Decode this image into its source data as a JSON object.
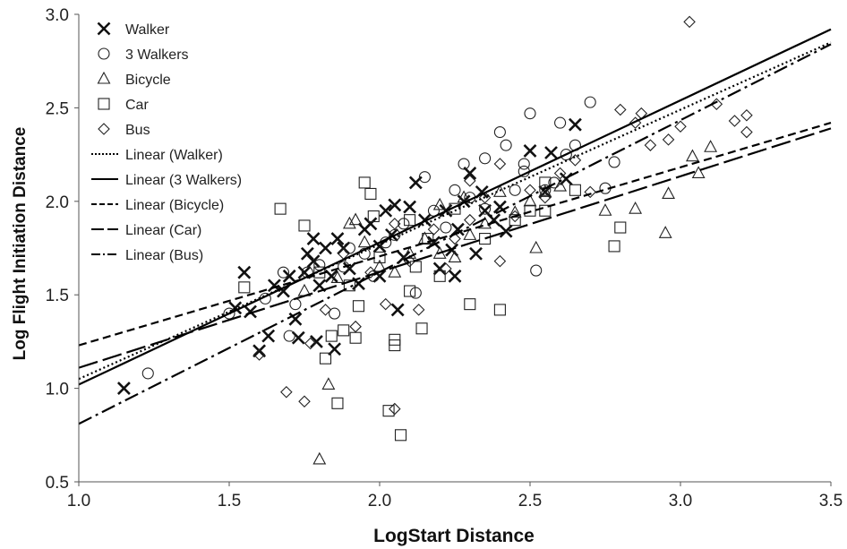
{
  "chart_data": {
    "type": "scatter",
    "xlabel": "LogStart Distance",
    "ylabel": "Log Flight Initiation Distance",
    "xlim": [
      1.0,
      3.5
    ],
    "ylim": [
      0.5,
      3.0
    ],
    "xticks": [
      "1.0",
      "1.5",
      "2.0",
      "2.5",
      "3.0",
      "3.5"
    ],
    "yticks": [
      "0.5",
      "1.0",
      "1.5",
      "2.0",
      "2.5",
      "3.0"
    ],
    "grid": false,
    "legend_position": "top-left",
    "series": [
      {
        "name": "Walker",
        "marker": "x",
        "points": [
          [
            1.15,
            1.0
          ],
          [
            1.52,
            1.43
          ],
          [
            1.55,
            1.62
          ],
          [
            1.57,
            1.41
          ],
          [
            1.6,
            1.2
          ],
          [
            1.63,
            1.28
          ],
          [
            1.65,
            1.55
          ],
          [
            1.68,
            1.52
          ],
          [
            1.7,
            1.6
          ],
          [
            1.72,
            1.37
          ],
          [
            1.73,
            1.27
          ],
          [
            1.75,
            1.62
          ],
          [
            1.76,
            1.72
          ],
          [
            1.78,
            1.68
          ],
          [
            1.79,
            1.25
          ],
          [
            1.8,
            1.55
          ],
          [
            1.82,
            1.75
          ],
          [
            1.84,
            1.6
          ],
          [
            1.85,
            1.21
          ],
          [
            1.86,
            1.8
          ],
          [
            1.88,
            1.75
          ],
          [
            1.9,
            1.64
          ],
          [
            1.93,
            1.56
          ],
          [
            1.95,
            1.85
          ],
          [
            1.97,
            1.88
          ],
          [
            2.0,
            1.76
          ],
          [
            2.02,
            1.95
          ],
          [
            2.04,
            1.82
          ],
          [
            2.05,
            1.98
          ],
          [
            2.06,
            1.42
          ],
          [
            2.08,
            1.7
          ],
          [
            2.1,
            1.97
          ],
          [
            2.12,
            2.1
          ],
          [
            2.15,
            1.9
          ],
          [
            2.18,
            1.78
          ],
          [
            2.2,
            1.64
          ],
          [
            2.22,
            1.95
          ],
          [
            2.24,
            1.74
          ],
          [
            2.25,
            1.6
          ],
          [
            2.26,
            1.85
          ],
          [
            2.28,
            2.0
          ],
          [
            2.3,
            2.15
          ],
          [
            2.32,
            1.72
          ],
          [
            2.34,
            2.05
          ],
          [
            2.35,
            1.95
          ],
          [
            2.38,
            1.9
          ],
          [
            2.4,
            1.97
          ],
          [
            2.42,
            1.84
          ],
          [
            2.5,
            2.27
          ],
          [
            2.55,
            2.05
          ],
          [
            2.57,
            2.26
          ],
          [
            2.62,
            2.12
          ],
          [
            2.65,
            2.41
          ],
          [
            1.78,
            1.8
          ],
          [
            2.0,
            1.6
          ]
        ]
      },
      {
        "name": "3 Walkers",
        "marker": "circle",
        "points": [
          [
            1.23,
            1.08
          ],
          [
            1.5,
            1.4
          ],
          [
            1.62,
            1.48
          ],
          [
            1.68,
            1.62
          ],
          [
            1.7,
            1.28
          ],
          [
            1.72,
            1.45
          ],
          [
            1.76,
            1.62
          ],
          [
            1.8,
            1.66
          ],
          [
            1.85,
            1.4
          ],
          [
            1.88,
            1.65
          ],
          [
            1.9,
            1.75
          ],
          [
            1.95,
            1.72
          ],
          [
            1.98,
            1.6
          ],
          [
            2.02,
            1.78
          ],
          [
            2.05,
            1.82
          ],
          [
            2.08,
            1.88
          ],
          [
            2.12,
            1.51
          ],
          [
            2.15,
            2.13
          ],
          [
            2.18,
            1.95
          ],
          [
            2.22,
            1.86
          ],
          [
            2.25,
            2.06
          ],
          [
            2.28,
            2.2
          ],
          [
            2.3,
            2.02
          ],
          [
            2.35,
            1.96
          ],
          [
            2.4,
            2.37
          ],
          [
            2.42,
            2.3
          ],
          [
            2.45,
            2.06
          ],
          [
            2.48,
            2.2
          ],
          [
            2.5,
            2.47
          ],
          [
            2.52,
            1.63
          ],
          [
            2.55,
            2.06
          ],
          [
            2.58,
            2.1
          ],
          [
            2.6,
            2.42
          ],
          [
            2.62,
            2.25
          ],
          [
            2.65,
            2.3
          ],
          [
            2.7,
            2.53
          ],
          [
            2.75,
            2.07
          ],
          [
            2.78,
            2.21
          ],
          [
            2.48,
            2.16
          ],
          [
            2.35,
            2.23
          ]
        ]
      },
      {
        "name": "Bicycle",
        "marker": "triangle",
        "points": [
          [
            1.8,
            0.62
          ],
          [
            1.83,
            1.02
          ],
          [
            1.86,
            1.59
          ],
          [
            1.9,
            1.88
          ],
          [
            1.95,
            1.78
          ],
          [
            2.0,
            1.65
          ],
          [
            2.05,
            1.62
          ],
          [
            2.1,
            1.72
          ],
          [
            2.15,
            1.8
          ],
          [
            2.2,
            1.98
          ],
          [
            2.25,
            1.7
          ],
          [
            2.3,
            1.82
          ],
          [
            2.35,
            1.88
          ],
          [
            2.4,
            2.05
          ],
          [
            2.45,
            1.94
          ],
          [
            2.5,
            2.0
          ],
          [
            2.52,
            1.75
          ],
          [
            2.55,
            2.05
          ],
          [
            2.6,
            2.08
          ],
          [
            2.75,
            1.95
          ],
          [
            2.85,
            1.96
          ],
          [
            2.95,
            1.83
          ],
          [
            2.96,
            2.04
          ],
          [
            3.04,
            2.24
          ],
          [
            3.06,
            2.15
          ],
          [
            3.1,
            2.29
          ],
          [
            1.75,
            1.52
          ],
          [
            1.92,
            1.9
          ],
          [
            2.28,
            2.02
          ],
          [
            2.2,
            1.72
          ]
        ]
      },
      {
        "name": "Car",
        "marker": "square",
        "points": [
          [
            1.55,
            1.54
          ],
          [
            1.67,
            1.96
          ],
          [
            1.75,
            1.87
          ],
          [
            1.8,
            1.62
          ],
          [
            1.82,
            1.16
          ],
          [
            1.84,
            1.28
          ],
          [
            1.86,
            0.92
          ],
          [
            1.88,
            1.31
          ],
          [
            1.9,
            1.55
          ],
          [
            1.92,
            1.27
          ],
          [
            1.93,
            1.44
          ],
          [
            1.95,
            2.1
          ],
          [
            1.97,
            2.04
          ],
          [
            2.0,
            1.7
          ],
          [
            2.03,
            0.88
          ],
          [
            2.05,
            1.26
          ],
          [
            2.05,
            1.23
          ],
          [
            2.07,
            0.75
          ],
          [
            2.1,
            1.52
          ],
          [
            2.12,
            1.65
          ],
          [
            2.14,
            1.32
          ],
          [
            2.16,
            1.8
          ],
          [
            2.2,
            1.6
          ],
          [
            2.25,
            1.96
          ],
          [
            2.3,
            1.45
          ],
          [
            2.35,
            1.8
          ],
          [
            2.4,
            1.42
          ],
          [
            2.45,
            1.9
          ],
          [
            2.5,
            1.95
          ],
          [
            2.55,
            2.1
          ],
          [
            2.65,
            2.06
          ],
          [
            2.78,
            1.76
          ],
          [
            2.8,
            1.86
          ],
          [
            2.55,
            1.95
          ],
          [
            2.1,
            1.9
          ],
          [
            1.98,
            1.92
          ]
        ]
      },
      {
        "name": "Bus",
        "marker": "diamond",
        "points": [
          [
            1.6,
            1.18
          ],
          [
            1.69,
            0.98
          ],
          [
            1.75,
            0.93
          ],
          [
            1.77,
            1.24
          ],
          [
            1.82,
            1.42
          ],
          [
            1.88,
            1.72
          ],
          [
            1.92,
            1.33
          ],
          [
            1.97,
            1.62
          ],
          [
            2.02,
            1.45
          ],
          [
            2.05,
            1.88
          ],
          [
            2.1,
            1.68
          ],
          [
            2.13,
            1.42
          ],
          [
            2.18,
            1.85
          ],
          [
            2.22,
            1.64
          ],
          [
            2.25,
            1.8
          ],
          [
            2.3,
            1.9
          ],
          [
            2.35,
            2.02
          ],
          [
            2.4,
            1.68
          ],
          [
            2.45,
            1.92
          ],
          [
            2.5,
            2.06
          ],
          [
            2.55,
            2.02
          ],
          [
            2.6,
            2.15
          ],
          [
            2.65,
            2.22
          ],
          [
            2.7,
            2.05
          ],
          [
            2.8,
            2.49
          ],
          [
            2.85,
            2.42
          ],
          [
            2.87,
            2.47
          ],
          [
            2.9,
            2.3
          ],
          [
            2.96,
            2.33
          ],
          [
            3.0,
            2.4
          ],
          [
            3.03,
            2.96
          ],
          [
            3.12,
            2.52
          ],
          [
            3.18,
            2.43
          ],
          [
            3.22,
            2.37
          ],
          [
            3.22,
            2.46
          ],
          [
            2.05,
            0.89
          ],
          [
            2.4,
            2.2
          ],
          [
            2.3,
            2.11
          ]
        ]
      }
    ],
    "trendlines": [
      {
        "name": "Linear (Walker)",
        "dash": "dotted",
        "x": [
          1.0,
          3.5
        ],
        "y": [
          1.05,
          2.85
        ]
      },
      {
        "name": "Linear (3 Walkers)",
        "dash": "solid",
        "x": [
          1.0,
          3.5
        ],
        "y": [
          1.02,
          2.92
        ]
      },
      {
        "name": "Linear (Bicycle)",
        "dash": "short-dash",
        "x": [
          1.0,
          3.5
        ],
        "y": [
          1.23,
          2.42
        ]
      },
      {
        "name": "Linear (Car)",
        "dash": "long-dash",
        "x": [
          1.0,
          3.5
        ],
        "y": [
          1.11,
          2.39
        ]
      },
      {
        "name": "Linear (Bus)",
        "dash": "dash-dot",
        "x": [
          1.0,
          3.5
        ],
        "y": [
          0.81,
          2.84
        ]
      }
    ]
  }
}
